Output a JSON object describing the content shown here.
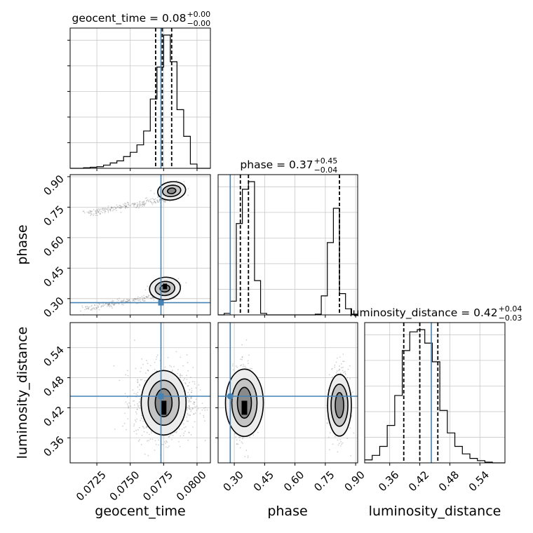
{
  "chart_data": {
    "type": "corner",
    "params": [
      {
        "name": "geocent_time",
        "xlabel": "geocent_time",
        "title": "geocent_time = 0.08",
        "title_sup": "+0.00",
        "title_sub": "−0.00",
        "range": [
          0.0705,
          0.081
        ],
        "ticks": [
          0.0725,
          0.075,
          0.0775,
          0.08
        ],
        "tick_labels": [
          "0.0725",
          "0.0750",
          "0.0775",
          "0.0800"
        ],
        "truth": 0.0773,
        "quantiles": [
          0.0769,
          0.0774,
          0.0781
        ],
        "hist_edges": [
          0.0705,
          0.071,
          0.0715,
          0.072,
          0.0725,
          0.073,
          0.0735,
          0.074,
          0.0745,
          0.075,
          0.0755,
          0.076,
          0.0765,
          0.077,
          0.0775,
          0.078,
          0.0785,
          0.079,
          0.0795,
          0.08,
          0.0805,
          0.081
        ],
        "hist_counts": [
          0,
          0,
          1,
          2,
          3,
          6,
          10,
          14,
          22,
          30,
          44,
          70,
          130,
          190,
          250,
          200,
          110,
          60,
          8,
          0,
          0
        ]
      },
      {
        "name": "phase",
        "xlabel": "phase",
        "ylabel": "phase",
        "title": "phase = 0.37",
        "title_sup": "+0.45",
        "title_sub": "−0.04",
        "range": [
          0.22,
          0.91
        ],
        "ticks": [
          0.3,
          0.45,
          0.6,
          0.75,
          0.9
        ],
        "tick_labels": [
          "0.30",
          "0.45",
          "0.60",
          "0.75",
          "0.90"
        ],
        "truth": 0.28,
        "quantiles": [
          0.33,
          0.37,
          0.82
        ],
        "hist_edges": [
          0.22,
          0.25,
          0.28,
          0.31,
          0.34,
          0.37,
          0.4,
          0.43,
          0.46,
          0.49,
          0.52,
          0.55,
          0.58,
          0.61,
          0.64,
          0.67,
          0.7,
          0.73,
          0.76,
          0.79,
          0.82,
          0.85,
          0.88,
          0.91
        ],
        "hist_counts": [
          0,
          2,
          18,
          120,
          165,
          175,
          45,
          2,
          0,
          0,
          0,
          0,
          0,
          0,
          0,
          0,
          1,
          25,
          95,
          140,
          28,
          8,
          1
        ]
      },
      {
        "name": "luminosity_distance",
        "xlabel": "luminosity_distance",
        "ylabel": "luminosity_distance",
        "title": "luminosity_distance = 0.42",
        "title_sup": "+0.04",
        "title_sub": "−0.03",
        "range": [
          0.31,
          0.59
        ],
        "ticks": [
          0.36,
          0.42,
          0.48,
          0.54
        ],
        "tick_labels": [
          "0.36",
          "0.42",
          "0.48",
          "0.54"
        ],
        "truth": 0.443,
        "quantiles": [
          0.388,
          0.42,
          0.456
        ],
        "hist_edges": [
          0.31,
          0.325,
          0.34,
          0.355,
          0.37,
          0.385,
          0.4,
          0.415,
          0.43,
          0.445,
          0.46,
          0.475,
          0.49,
          0.505,
          0.52,
          0.535,
          0.55,
          0.565,
          0.59
        ],
        "hist_counts": [
          4,
          10,
          22,
          50,
          90,
          150,
          175,
          178,
          160,
          135,
          70,
          40,
          22,
          12,
          6,
          3,
          1,
          0
        ]
      }
    ],
    "colors": {
      "truth": "#4682b4",
      "hist": "#000000",
      "grid": "#c8c8c8",
      "points": "#7a7a7a"
    },
    "grid": true
  }
}
